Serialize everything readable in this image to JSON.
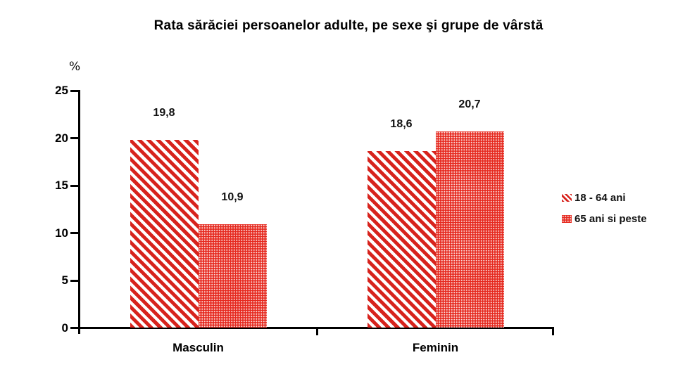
{
  "page": {
    "background": "#ffffff"
  },
  "chart_data": {
    "type": "bar",
    "title": "Rata sărăciei persoanelor adulte, pe sexe şi grupe de vârstă",
    "y_axis_unit": "%",
    "categories": [
      "Masculin",
      "Feminin"
    ],
    "series": [
      {
        "name": "18 - 64 ani",
        "pattern": "diagonal-stripes",
        "values": [
          19.8,
          18.6
        ],
        "value_labels": [
          "19,8",
          "18,6"
        ]
      },
      {
        "name": "65 ani si peste",
        "pattern": "dots",
        "values": [
          10.9,
          20.7
        ],
        "value_labels": [
          "10,9",
          "20,7"
        ]
      }
    ],
    "ylim": [
      0,
      25
    ],
    "y_ticks": [
      0,
      5,
      10,
      15,
      20,
      25
    ],
    "grid": false,
    "legend_position": "right",
    "decimal_separator": ",",
    "colors": {
      "stripe_red": "#d7231d",
      "dot_red": "#e62a20",
      "axis_black": "#000000",
      "label_text": "#111111"
    }
  }
}
